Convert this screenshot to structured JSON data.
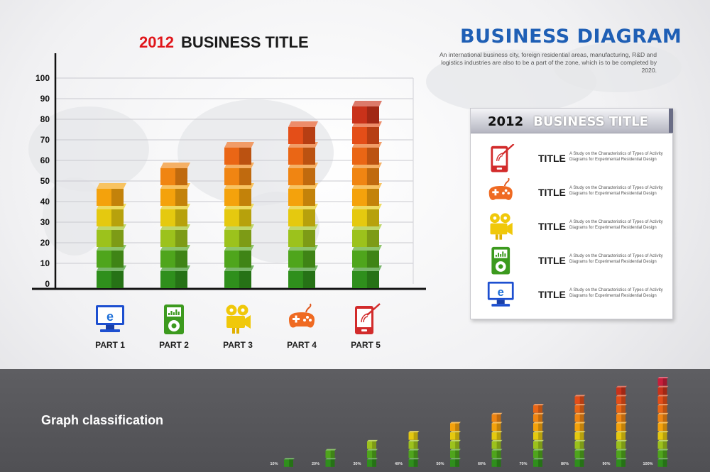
{
  "chart_data": {
    "type": "bar",
    "title_year": "2012",
    "title": "BUSINESS TITLE",
    "categories": [
      "PART 1",
      "PART 2",
      "PART 3",
      "PART 4",
      "PART 5"
    ],
    "values": [
      50,
      60,
      70,
      80,
      90
    ],
    "ylim": [
      0,
      100
    ],
    "y_ticks": [
      "0",
      "10",
      "20",
      "30",
      "40",
      "50",
      "60",
      "70",
      "80",
      "90",
      "100"
    ],
    "xlabel": "",
    "ylabel": "",
    "grid": true,
    "bar_style": "stacked 3D cubes, each cube = 10 units",
    "cube_colors": [
      "#2f8f1c",
      "#4fa51c",
      "#9cc21c",
      "#e5c90f",
      "#f4a20c",
      "#f08512",
      "#ea6615",
      "#e44e18",
      "#c9321a"
    ],
    "icons": [
      "monitor-e-icon",
      "music-player-icon",
      "video-camera-icon",
      "gamepad-icon",
      "mobile-phone-icon"
    ]
  },
  "header": {
    "title": "BUSINESS DIAGRAM",
    "description": "An international business city, foreign residential areas, manufacturing, R&D and logistics industries are also to be a part of the zone, which is to be completed by 2020."
  },
  "panel": {
    "year": "2012",
    "title": "BUSINESS TITLE",
    "rows": [
      {
        "icon": "mobile-phone-icon",
        "title": "TITLE",
        "desc": "A Study on the Characteristics of Types of Activity Diagrams for Experimental Residential Design"
      },
      {
        "icon": "gamepad-icon",
        "title": "TITLE",
        "desc": "A Study on the Characteristics of Types of Activity Diagrams for Experimental Residential Design"
      },
      {
        "icon": "video-camera-icon",
        "title": "TITLE",
        "desc": "A Study on the Characteristics of Types of Activity Diagrams for Experimental Residential Design"
      },
      {
        "icon": "music-player-icon",
        "title": "TITLE",
        "desc": "A Study on the Characteristics of Types of Activity Diagrams for Experimental Residential Design"
      },
      {
        "icon": "monitor-e-icon",
        "title": "TITLE",
        "desc": "A Study on the Characteristics of Types of Activity Diagrams for Experimental Residential Design"
      }
    ]
  },
  "classification": {
    "title": "Graph classification",
    "labels": [
      "10%",
      "20%",
      "30%",
      "40%",
      "50%",
      "60%",
      "70%",
      "80%",
      "90%",
      "100%"
    ],
    "values": [
      10,
      20,
      30,
      40,
      50,
      60,
      70,
      80,
      90,
      100
    ]
  },
  "colors": {
    "accent_red": "#e0161b",
    "accent_blue": "#1f5fb5",
    "band": "#58585c"
  }
}
